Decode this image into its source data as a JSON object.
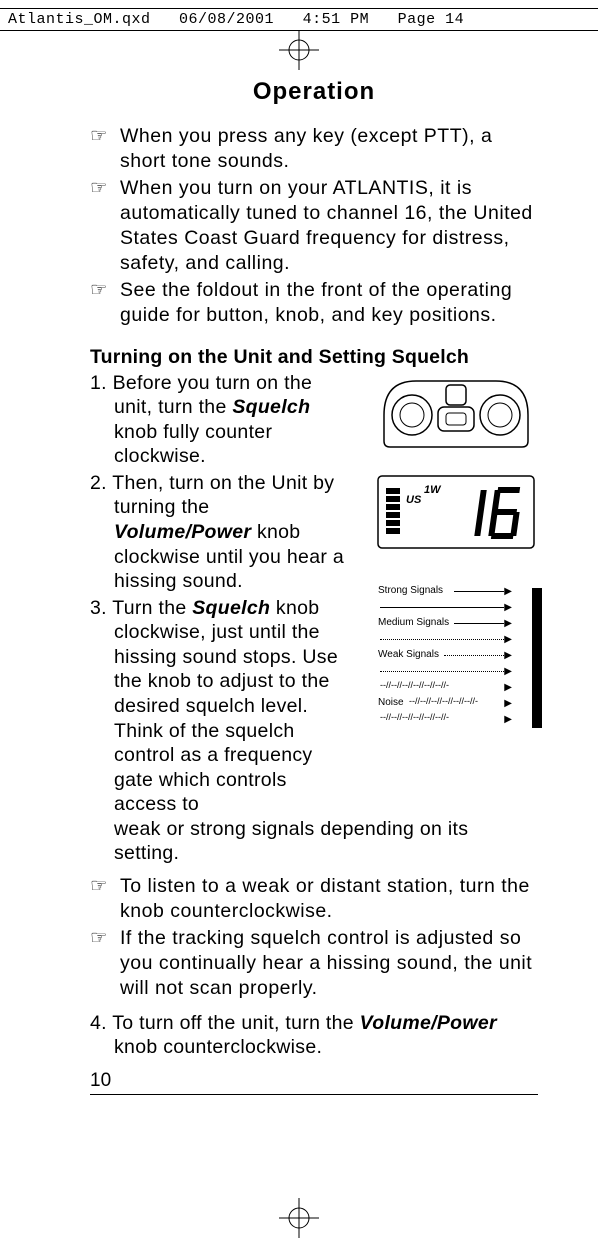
{
  "slug": {
    "file": "Atlantis_OM.qxd",
    "date": "06/08/2001",
    "time": "4:51 PM",
    "page": "Page 14"
  },
  "title": "Operation",
  "notes": [
    "When you press any key (except PTT), a short tone sounds.",
    "When you turn on your ATLANTIS, it is automatically tuned to channel 16, the United States Coast Guard frequency for distress, safety, and calling.",
    "See the foldout in the front of the operating guide for button, knob, and key positions."
  ],
  "subheading": "Turning on the Unit and Setting Squelch",
  "steps": {
    "s1_a": "1. Before you turn on the unit, turn the ",
    "s1_bi": "Squelch",
    "s1_b": " knob fully counter clockwise.",
    "s2_a": "2. Then, turn on the Unit by turning the ",
    "s2_bi": "Volume/Power",
    "s2_b": " knob clockwise until you hear a hissing sound.",
    "s3_a": "3. Turn the ",
    "s3_bi": "Squelch",
    "s3_b": " knob clockwise, just until the hissing sound stops. Use the knob to adjust to the desired squelch level. Think of the squelch control as a frequency gate which controls access to weak or strong signals depending on its setting."
  },
  "notes2": [
    "To listen to a weak or distant station, turn the knob counterclockwise.",
    "If the tracking squelch control is adjusted so you continually hear a hissing sound, the unit will not scan properly."
  ],
  "step4_a": "4. To turn off the unit, turn the ",
  "step4_bi": "Volume/Power",
  "step4_b": " knob counterclockwise.",
  "pagenum": "10",
  "lcd": {
    "us": "US",
    "watt": "1W",
    "channel": "16"
  },
  "squelch_diagram": {
    "rows": [
      {
        "label": "Strong Signals",
        "style": "solid"
      },
      {
        "label": "",
        "style": "solid"
      },
      {
        "label": "Medium Signals",
        "style": "solid"
      },
      {
        "label": "",
        "style": "dot"
      },
      {
        "label": "Weak Signals",
        "style": "dot"
      },
      {
        "label": "",
        "style": "dot"
      },
      {
        "label": "",
        "style": "noise"
      },
      {
        "label": "Noise",
        "style": "noise"
      },
      {
        "label": "",
        "style": "noise"
      }
    ]
  }
}
